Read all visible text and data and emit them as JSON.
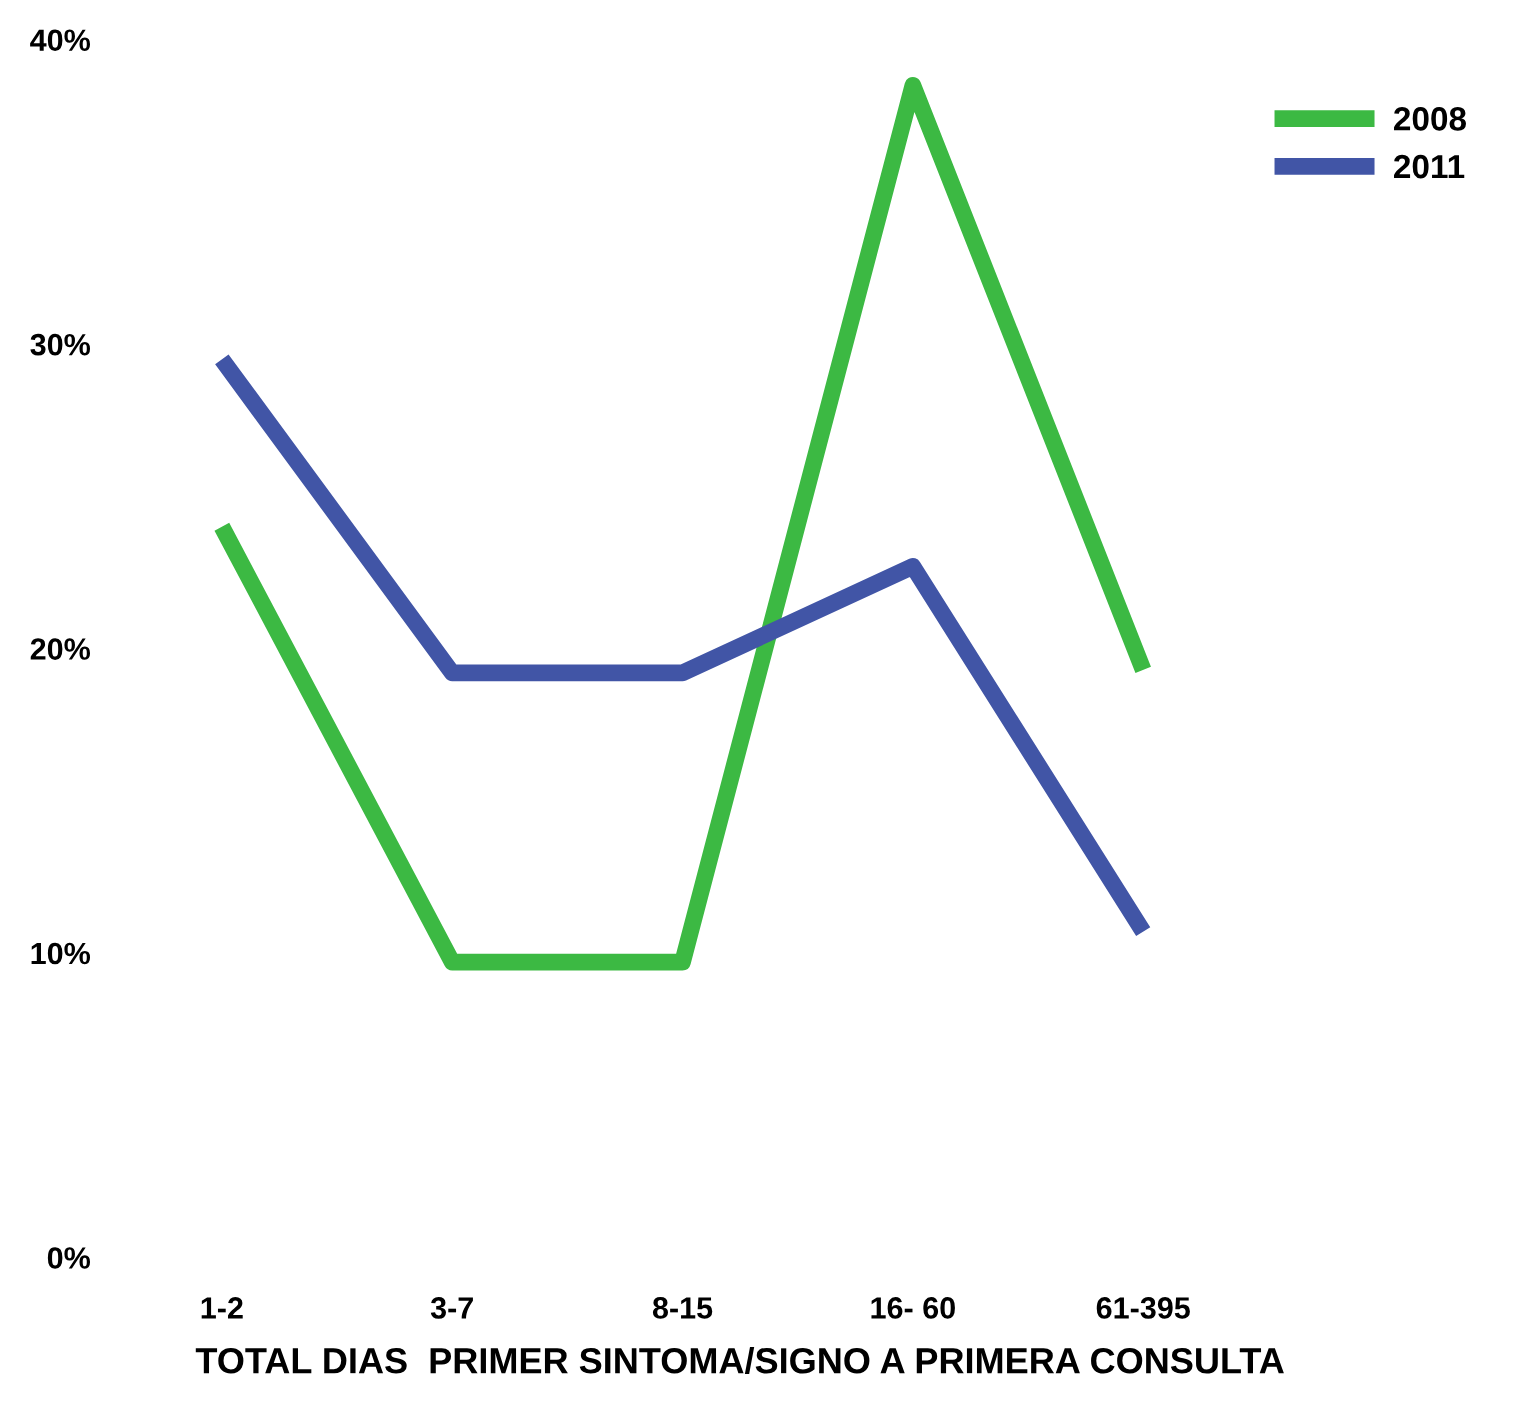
{
  "chart_data": {
    "type": "line",
    "xlabel": "TOTAL DIAS  PRIMER SINTOMA/SIGNO A PRIMERA CONSULTA",
    "categories": [
      "1-2",
      "3-7",
      "8-15",
      "16- 60",
      "61-395"
    ],
    "series": [
      {
        "name": "2008",
        "color": "#3cb943",
        "values": [
          24,
          9.7,
          9.7,
          38.5,
          19.3
        ]
      },
      {
        "name": "2011",
        "color": "#4155a6",
        "values": [
          29.5,
          19.2,
          19.2,
          22.7,
          10.7
        ]
      }
    ],
    "ylim": [
      0,
      40
    ],
    "yticks": [
      {
        "value": 0,
        "label": "0%"
      },
      {
        "value": 10,
        "label": "10%"
      },
      {
        "value": 20,
        "label": "20%"
      },
      {
        "value": 30,
        "label": "30%"
      },
      {
        "value": 40,
        "label": "40%"
      }
    ],
    "grid": false,
    "legend": "top right",
    "marker": "none",
    "line_style": "solid"
  }
}
